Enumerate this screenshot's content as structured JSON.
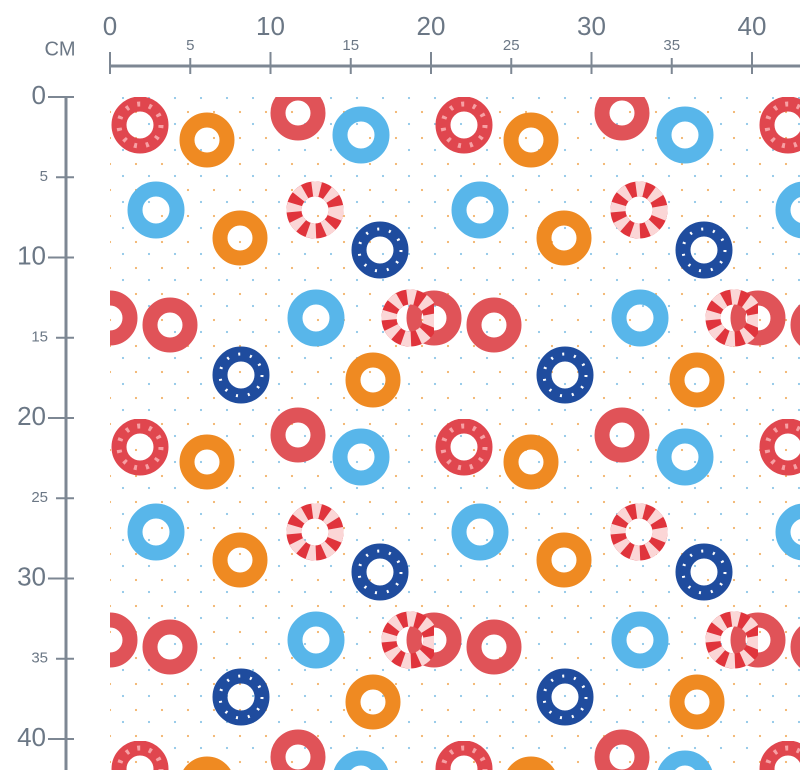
{
  "unit": "CM",
  "top_ruler": {
    "labels": [
      0,
      5,
      10,
      15,
      20,
      25,
      30,
      35,
      40
    ]
  },
  "left_ruler": {
    "labels": [
      0,
      5,
      10,
      15,
      20,
      25,
      30,
      35,
      40
    ]
  }
}
